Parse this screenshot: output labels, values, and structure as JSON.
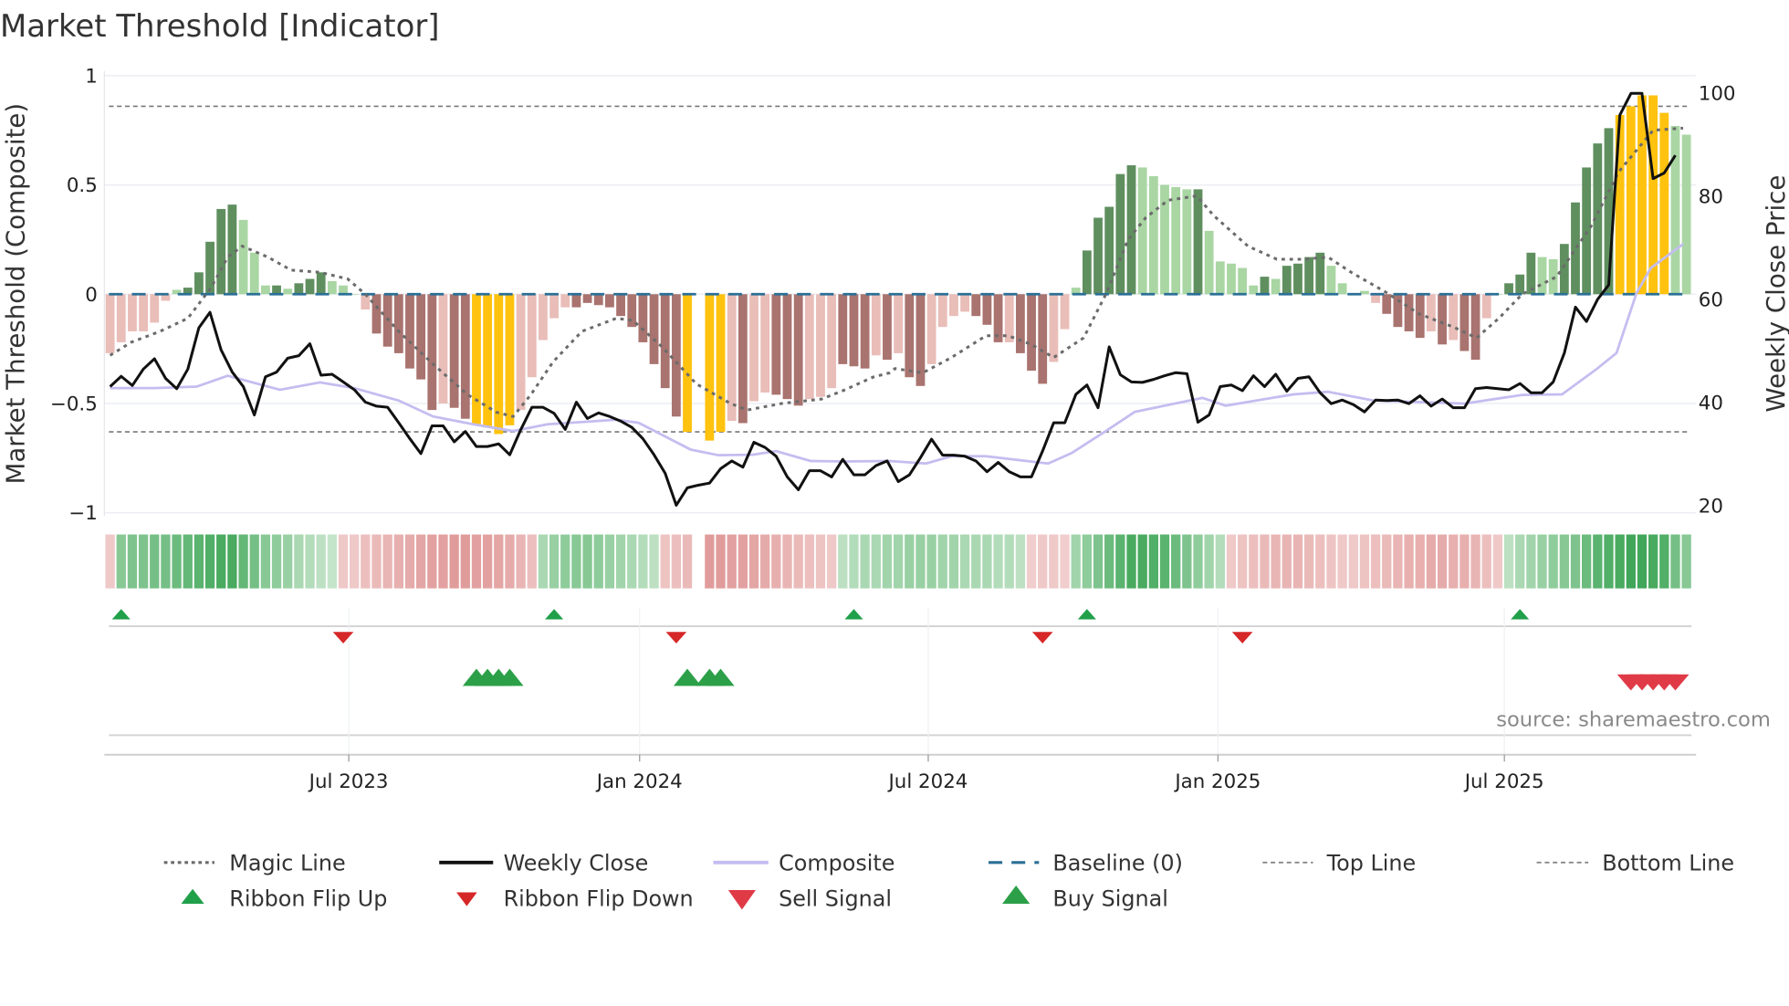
{
  "title": "Market Threshold [Indicator]",
  "source": "source: sharemaestro.com",
  "legend": {
    "magic_line": "Magic Line",
    "weekly_close": "Weekly Close",
    "composite": "Composite",
    "baseline": "Baseline (0)",
    "top_line": "Top Line",
    "bottom_line": "Bottom Line",
    "ribbon_flip_up": "Ribbon Flip Up",
    "ribbon_flip_down": "Ribbon Flip Down",
    "sell_signal": "Sell Signal",
    "buy_signal": "Buy Signal"
  },
  "chart_data": {
    "type": "bar",
    "title": "Market Threshold [Indicator]",
    "ylabel_left": "Market Threshold (Composite)",
    "ylabel_right": "Weekly Close Price",
    "ylim_left": [
      -1,
      1
    ],
    "ylim_right": [
      18.7,
      103.3
    ],
    "left_ticks": [
      {
        "label": "1",
        "value": 1
      },
      {
        "label": "0.5",
        "value": 0.5
      },
      {
        "label": "0",
        "value": 0
      },
      {
        "label": "−0.5",
        "value": -0.5
      },
      {
        "label": "−1",
        "value": -1
      }
    ],
    "right_ticks": [
      {
        "label": "100",
        "value": 100
      },
      {
        "label": "80",
        "value": 80
      },
      {
        "label": "60",
        "value": 60
      },
      {
        "label": "40",
        "value": 40
      },
      {
        "label": "20",
        "value": 20
      }
    ],
    "x_ticks": [
      {
        "label": "Jul 2023",
        "week": 21.5
      },
      {
        "label": "Jan 2024",
        "week": 47.7
      },
      {
        "label": "Jul 2024",
        "week": 73.7
      },
      {
        "label": "Jan 2025",
        "week": 99.8
      },
      {
        "label": "Jul 2025",
        "week": 125.6
      }
    ],
    "top_line": 0.86,
    "bottom_line": -0.63,
    "baseline": 0,
    "composite_bars": [
      -0.27,
      -0.22,
      -0.17,
      -0.17,
      -0.13,
      -0.03,
      0.02,
      0.03,
      0.1,
      0.24,
      0.39,
      0.41,
      0.34,
      0.19,
      0.04,
      0.04,
      0.025,
      0.05,
      0.07,
      0.1,
      0.06,
      0.04,
      0,
      -0.07,
      -0.18,
      -0.24,
      -0.27,
      -0.34,
      -0.39,
      -0.53,
      -0.5,
      -0.52,
      -0.57,
      -0.6,
      -0.61,
      -0.64,
      -0.6,
      -0.53,
      -0.38,
      -0.21,
      -0.11,
      -0.06,
      -0.06,
      -0.04,
      -0.05,
      -0.06,
      -0.1,
      -0.15,
      -0.22,
      -0.32,
      -0.43,
      -0.56,
      -0.63,
      null,
      -0.67,
      -0.63,
      -0.58,
      -0.59,
      -0.49,
      -0.45,
      -0.46,
      -0.48,
      -0.51,
      -0.48,
      -0.47,
      -0.43,
      -0.32,
      -0.33,
      -0.34,
      -0.28,
      -0.3,
      -0.27,
      -0.38,
      -0.42,
      -0.32,
      -0.15,
      -0.1,
      -0.08,
      -0.1,
      -0.14,
      -0.22,
      -0.22,
      -0.27,
      -0.35,
      -0.41,
      -0.31,
      -0.16,
      0.03,
      0.2,
      0.35,
      0.4,
      0.55,
      0.59,
      0.58,
      0.54,
      0.5,
      0.49,
      0.48,
      0.48,
      0.29,
      0.15,
      0.14,
      0.12,
      0.04,
      0.08,
      0.07,
      0.13,
      0.14,
      0.17,
      0.19,
      0.13,
      0.05,
      0,
      0.015,
      -0.04,
      -0.09,
      -0.15,
      -0.17,
      -0.2,
      -0.17,
      -0.23,
      -0.21,
      -0.26,
      -0.3,
      -0.11,
      0,
      0.05,
      0.09,
      0.19,
      0.17,
      0.16,
      0.23,
      0.42,
      0.58,
      0.69,
      0.76,
      0.82,
      0.86,
      0.91,
      0.91,
      0.83,
      0.77,
      0.73
    ],
    "bar_colors": "rrrrrrgGGGGGgggGgGGGgggrRRRRRRrRRYYYYrrrrrRRRRRRRRRRY-YYrRrrRRRrrrRRRrRrRRrrrrRRRrRRRrrgGGGGGgggggGgggggGgGGGGggggrRRRRrRrRRrgGGGggGGGGGYYYYYgg",
    "weekly_close": [
      43.1,
      45.1,
      43.3,
      46.5,
      48.5,
      44.7,
      42.7,
      46.5,
      54.5,
      57.5,
      50.2,
      45.9,
      43.1,
      37.6,
      45,
      45.9,
      48.6,
      49.1,
      51.4,
      45.3,
      45.5,
      44,
      42.5,
      40.1,
      39.3,
      39.1,
      36.1,
      33,
      30.1,
      35.5,
      35.5,
      32.4,
      34.4,
      31.5,
      31.5,
      32,
      29.9,
      34.8,
      39.1,
      39.1,
      37.9,
      34.8,
      40.1,
      36.9,
      38,
      37.3,
      36.4,
      35.2,
      33,
      29.9,
      26.3,
      20.1,
      23.5,
      24,
      24.4,
      27.2,
      28.7,
      27.5,
      32.3,
      31.3,
      29.6,
      25.6,
      23.1,
      26.8,
      26.8,
      25.6,
      29,
      26,
      26,
      27.8,
      28.7,
      24.7,
      26,
      29.3,
      32.9,
      29.8,
      29.8,
      29.6,
      28.7,
      26.6,
      28.4,
      26.6,
      25.6,
      25.6,
      30.6,
      36.1,
      36.1,
      41.6,
      43.4,
      39,
      50.8,
      45.4,
      44,
      43.9,
      44.5,
      45.2,
      45.8,
      45.6,
      36.2,
      37.6,
      43.1,
      43.4,
      42.3,
      45.2,
      43.1,
      45.5,
      42.2,
      44.7,
      45,
      41.9,
      39.8,
      40.5,
      39.6,
      38.2,
      40.5,
      40.4,
      40.5,
      39.8,
      41.3,
      39.3,
      40.7,
      39,
      39,
      42.7,
      42.9,
      42.7,
      42.5,
      43.7,
      41.9,
      41.9,
      44,
      49.6,
      58.5,
      55.7,
      60,
      62.8,
      95.7,
      99.9,
      99.9,
      83.4,
      84.5,
      87.9
    ],
    "magic_line": {
      "week": [
        0,
        1.9,
        4.5,
        7,
        9.1,
        10.6,
        11.9,
        14.2,
        16.3,
        18.9,
        21.4,
        23,
        26,
        29.1,
        32.2,
        34.8,
        36.3,
        37.9,
        39.9,
        42.5,
        45.6,
        47.1,
        49.7,
        52.8,
        55.9,
        57.4,
        60.5,
        64.1,
        66.1,
        68.7,
        70.2,
        70.7,
        73.2,
        75.8,
        78.9,
        80.9,
        83,
        85,
        87.7,
        89.7,
        91.7,
        93.3,
        95.3,
        97.9,
        99.4,
        102.5,
        105.1,
        107.6,
        109.7,
        111.8,
        114.9,
        117.9,
        121,
        123.1,
        125.1,
        127.2,
        130.3,
        133.4,
        135.9,
        139,
        141.7
      ],
      "value": [
        -0.28,
        -0.22,
        -0.17,
        -0.11,
        0.03,
        0.17,
        0.22,
        0.17,
        0.11,
        0.1,
        0.07,
        0,
        -0.17,
        -0.32,
        -0.46,
        -0.54,
        -0.56,
        -0.46,
        -0.31,
        -0.17,
        -0.11,
        -0.12,
        -0.24,
        -0.41,
        -0.5,
        -0.53,
        -0.5,
        -0.48,
        -0.44,
        -0.38,
        -0.36,
        -0.34,
        -0.36,
        -0.29,
        -0.19,
        -0.19,
        -0.23,
        -0.29,
        -0.2,
        0,
        0.25,
        0.35,
        0.43,
        0.45,
        0.36,
        0.22,
        0.16,
        0.16,
        0.17,
        0.1,
        0.01,
        -0.09,
        -0.15,
        -0.2,
        -0.11,
        0,
        0.08,
        0.31,
        0.56,
        0.75,
        0.76
      ]
    },
    "composite_line": {
      "week": [
        0,
        4,
        7.8,
        10.6,
        15.3,
        18.9,
        22,
        26,
        29.1,
        32.7,
        36.3,
        39.4,
        41.5,
        45.6,
        47.6,
        52.3,
        54.8,
        57.9,
        60,
        63.1,
        66.1,
        70.2,
        73.5,
        75.8,
        78.9,
        84.5,
        86.6,
        89.7,
        92.3,
        98.4,
        100.5,
        106.6,
        109.7,
        113.8,
        122,
        127.2,
        130.8,
        133.9,
        135.7,
        137.5,
        138.8,
        141.7
      ],
      "value": [
        42.8,
        42.8,
        43.1,
        45.2,
        42.5,
        43.9,
        42.8,
        40.4,
        37.3,
        35.8,
        34.5,
        35.8,
        36.1,
        36.7,
        36.1,
        30.9,
        29.8,
        29.9,
        30.6,
        28.7,
        28.6,
        28.7,
        28.2,
        29.6,
        29.6,
        28.2,
        30.2,
        34.5,
        38.2,
        40.9,
        39.4,
        41.6,
        42.1,
        40.4,
        39.8,
        41.5,
        41.6,
        46.5,
        49.6,
        61.2,
        66.1,
        70.7
      ]
    },
    "ribbon": [
      -0.2,
      0.5,
      0.55,
      0.55,
      0.6,
      0.6,
      0.65,
      0.7,
      0.75,
      0.8,
      0.85,
      0.85,
      0.7,
      0.6,
      0.5,
      0.45,
      0.4,
      0.3,
      0.25,
      0.2,
      0.15,
      -0.2,
      -0.2,
      -0.3,
      -0.35,
      -0.4,
      -0.45,
      -0.5,
      -0.55,
      -0.6,
      -0.6,
      -0.65,
      -0.65,
      -0.6,
      -0.6,
      -0.55,
      -0.5,
      -0.4,
      -0.3,
      0.3,
      0.4,
      0.45,
      0.5,
      0.5,
      0.45,
      0.4,
      0.35,
      0.3,
      0.25,
      0.2,
      -0.25,
      -0.3,
      -0.35,
      null,
      -0.65,
      -0.65,
      -0.6,
      -0.6,
      -0.55,
      -0.5,
      -0.45,
      -0.4,
      -0.35,
      -0.3,
      -0.25,
      -0.2,
      0.2,
      0.25,
      0.3,
      0.3,
      0.35,
      0.35,
      0.4,
      0.4,
      0.4,
      0.35,
      0.35,
      0.3,
      0.3,
      0.3,
      0.25,
      0.25,
      0.2,
      -0.15,
      -0.2,
      -0.2,
      -0.15,
      0.35,
      0.45,
      0.55,
      0.65,
      0.75,
      0.85,
      0.85,
      0.8,
      0.75,
      0.65,
      0.55,
      0.45,
      0.35,
      0.25,
      -0.2,
      -0.25,
      -0.3,
      -0.35,
      -0.4,
      -0.4,
      -0.4,
      -0.35,
      -0.3,
      -0.25,
      -0.2,
      -0.2,
      -0.25,
      -0.3,
      -0.35,
      -0.4,
      -0.45,
      -0.45,
      -0.5,
      -0.5,
      -0.45,
      -0.45,
      -0.4,
      -0.3,
      -0.2,
      0.2,
      0.3,
      0.35,
      0.4,
      0.45,
      0.5,
      0.55,
      0.65,
      0.75,
      0.8,
      0.85,
      0.9,
      0.9,
      0.85,
      0.8,
      0.6,
      0.5
    ],
    "ribbon_flip_up": [
      1,
      40,
      67,
      88,
      127
    ],
    "ribbon_flip_down": [
      21,
      51,
      84,
      102
    ],
    "buy_signals": [
      33,
      34,
      35,
      36,
      52,
      54,
      55
    ],
    "sell_signals": [
      137,
      138,
      139,
      140,
      141
    ],
    "colors": {
      "G": "#5f8f5f",
      "g": "#a9d6a3",
      "R": "#a9736f",
      "r": "#e9bdb8",
      "Y": "#ffc20e",
      "close": "#111111",
      "composite": "#c4bdf0",
      "magic": "#6b6b6b",
      "baseline": "#2b6f96",
      "threshold": "#777777",
      "up": "#21a04a",
      "down": "#d62728",
      "buy": "#2ca048",
      "sell": "#e03a47"
    }
  }
}
